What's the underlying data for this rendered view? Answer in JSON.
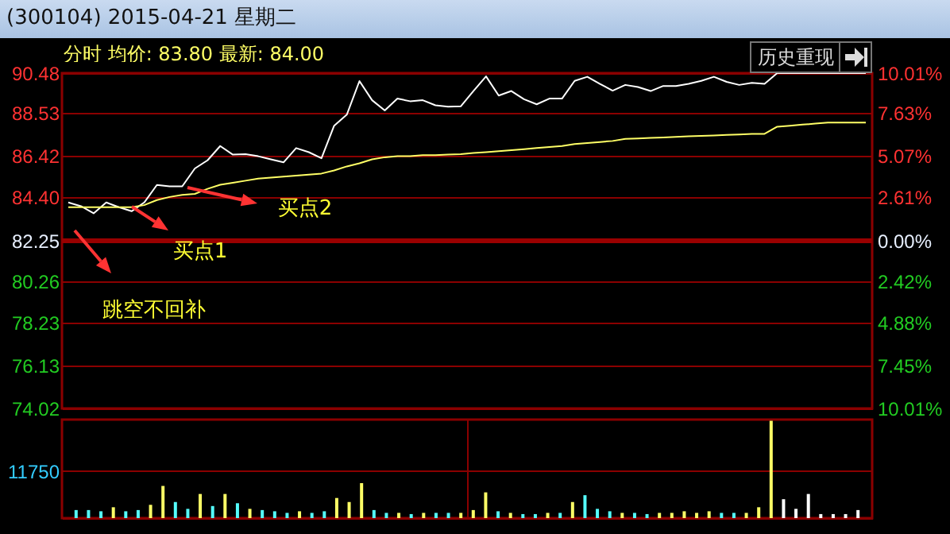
{
  "chart_data": [
    {
      "type": "line",
      "title": "(300104) 2015-04-21 星期二",
      "subtitle": "分时 均价: 83.80 最新: 84.00",
      "categories": [
        null,
        null,
        null,
        null,
        null,
        null,
        null,
        null,
        null,
        null,
        null,
        null,
        null,
        null,
        null,
        null,
        null,
        null,
        null,
        null,
        null,
        null,
        null,
        null,
        null,
        null,
        null,
        null,
        null,
        null,
        null,
        null,
        null,
        null,
        null,
        null,
        null,
        null,
        null,
        null,
        null,
        null,
        null,
        null,
        null,
        null,
        null,
        null,
        null,
        null,
        null,
        null,
        null,
        null,
        null,
        null,
        null,
        null,
        null,
        null,
        null,
        null,
        null,
        null
      ],
      "series": [
        {
          "color": "#ffffff",
          "values": [
            84.13,
            83.95,
            83.6,
            84.13,
            83.9,
            83.7,
            84.13,
            84.99,
            84.92,
            84.92,
            85.8,
            86.2,
            86.9,
            86.48,
            86.5,
            86.4,
            86.25,
            86.1,
            86.8,
            86.6,
            86.3,
            87.9,
            88.44,
            90.09,
            89.15,
            88.65,
            89.23,
            89.1,
            89.15,
            88.9,
            88.83,
            88.85,
            89.6,
            90.32,
            89.38,
            89.6,
            89.2,
            88.95,
            89.23,
            89.23,
            90.1,
            90.3,
            89.95,
            89.62,
            89.9,
            89.8,
            89.6,
            89.85,
            89.85,
            89.95,
            90.1,
            90.3,
            90.05,
            89.9,
            90.0,
            89.95,
            90.48,
            90.48,
            90.48,
            90.48,
            90.48,
            90.48,
            90.48,
            90.48
          ]
        },
        {
          "color": "#ffff66",
          "values": [
            83.9,
            83.9,
            83.9,
            83.9,
            83.9,
            83.9,
            84.0,
            84.25,
            84.4,
            84.5,
            84.55,
            84.8,
            85.0,
            85.1,
            85.2,
            85.3,
            85.35,
            85.4,
            85.45,
            85.5,
            85.55,
            85.7,
            85.9,
            86.05,
            86.25,
            86.35,
            86.4,
            86.4,
            86.45,
            86.45,
            86.48,
            86.5,
            86.56,
            86.6,
            86.65,
            86.7,
            86.75,
            86.8,
            86.85,
            86.9,
            87.0,
            87.05,
            87.1,
            87.15,
            87.25,
            87.27,
            87.3,
            87.32,
            87.35,
            87.38,
            87.4,
            87.42,
            87.45,
            87.47,
            87.5,
            87.5,
            87.85,
            87.9,
            87.95,
            88.0,
            88.05,
            88.05,
            88.05,
            88.05
          ]
        }
      ],
      "ylim": [
        74.02,
        90.48
      ],
      "yticks": [
        90.48,
        88.53,
        86.42,
        {
          "value": 84.4,
          "label": "84.40"
        },
        82.25,
        80.26,
        78.23,
        76.13,
        74.02
      ],
      "y2lim": [
        -10.01,
        10.01
      ],
      "y2ticks": [
        {
          "value": 10.01,
          "label": "10.01%"
        },
        {
          "value": 7.63,
          "label": "7.63%"
        },
        {
          "value": 5.07,
          "label": "5.07%"
        },
        {
          "value": 2.61,
          "label": "2.61%"
        },
        {
          "value": 0,
          "label": "0.00%"
        },
        {
          "value": -2.42,
          "label": "2.42%"
        },
        {
          "value": -4.88,
          "label": "4.88%"
        },
        {
          "value": -7.45,
          "label": "7.45%"
        },
        {
          "value": -10.01,
          "label": "10.01%"
        }
      ],
      "ref_lines": [
        {
          "axis": "y2",
          "value": 0,
          "color": "#990000"
        }
      ],
      "grid": true,
      "annotations": [
        "买点1",
        "买点2",
        "跳空不回补",
        "历史重现"
      ]
    },
    {
      "type": "bar",
      "categories": [
        null,
        null,
        null,
        null,
        null,
        null,
        null,
        null,
        null,
        null,
        null,
        null,
        null,
        null,
        null,
        null,
        null,
        null,
        null,
        null,
        null,
        null,
        null,
        null,
        null,
        null,
        null,
        null,
        null,
        null,
        null,
        null,
        null,
        null,
        null,
        null,
        null,
        null,
        null,
        null,
        null,
        null,
        null,
        null,
        null,
        null,
        null,
        null,
        null,
        null,
        null,
        null,
        null,
        null,
        null,
        null,
        null,
        null,
        null,
        null,
        null,
        null,
        null,
        null
      ],
      "values": [
        2000,
        2000,
        1700,
        2700,
        1700,
        2000,
        3300,
        8000,
        4000,
        2300,
        6000,
        3000,
        6000,
        3700,
        2300,
        2000,
        1700,
        1300,
        1700,
        1300,
        1700,
        5000,
        4000,
        8700,
        2000,
        1300,
        1300,
        1000,
        1300,
        1300,
        1300,
        1300,
        2000,
        6400,
        1700,
        1300,
        1000,
        1000,
        1300,
        1300,
        4000,
        5700,
        2300,
        1700,
        1300,
        1300,
        1000,
        1300,
        1300,
        1700,
        1300,
        1700,
        1300,
        1300,
        1300,
        2700,
        24200,
        4700,
        2300,
        6000,
        1000,
        1000,
        1000,
        2000
      ],
      "colors": [
        "#54fcfc",
        "#54fcfc",
        "#54fcfc",
        "#ffff66",
        "#54fcfc",
        "#54fcfc",
        "#ffff66",
        "#ffff66",
        "#54fcfc",
        "#54fcfc",
        "#ffff66",
        "#54fcfc",
        "#ffff66",
        "#54fcfc",
        "#ffff66",
        "#54fcfc",
        "#54fcfc",
        "#54fcfc",
        "#ffff66",
        "#54fcfc",
        "#54fcfc",
        "#ffff66",
        "#ffff66",
        "#ffff66",
        "#54fcfc",
        "#54fcfc",
        "#ffff66",
        "#54fcfc",
        "#ffff66",
        "#54fcfc",
        "#54fcfc",
        "#ffff66",
        "#ffff66",
        "#ffff66",
        "#54fcfc",
        "#ffff66",
        "#54fcfc",
        "#54fcfc",
        "#ffff66",
        "#54fcfc",
        "#ffff66",
        "#54fcfc",
        "#54fcfc",
        "#54fcfc",
        "#ffff66",
        "#54fcfc",
        "#54fcfc",
        "#ffff66",
        "#ffff66",
        "#ffff66",
        "#ffff66",
        "#ffff66",
        "#54fcfc",
        "#54fcfc",
        "#ffff66",
        "#ffff66",
        "#ffff66",
        "#ffffff",
        "#ffffff",
        "#ffffff",
        "#ffffff",
        "#ffffff",
        "#ffffff",
        "#ffffff"
      ],
      "ylim": [
        0,
        24500
      ],
      "yticks": [
        {
          "value": 0,
          "label": null
        },
        11750
      ],
      "grid": true
    }
  ]
}
